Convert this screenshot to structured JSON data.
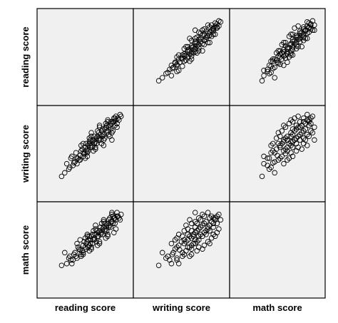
{
  "chart_data": {
    "type": "scatter",
    "variables": [
      "reading score",
      "writing score",
      "math score"
    ],
    "row_labels": [
      "reading score",
      "writing score",
      "math score"
    ],
    "column_labels": [
      "reading score",
      "writing score",
      "math score"
    ],
    "diagonal": "empty",
    "marker": "open-circle",
    "grid": false,
    "panel_background": "#f0f0f0",
    "marker_color": "#000000",
    "axis_ranges": {
      "reading score": [
        20,
        100
      ],
      "writing score": [
        10,
        100
      ],
      "math score": [
        10,
        100
      ]
    },
    "observations": {
      "columns": [
        "reading score",
        "writing score",
        "math score"
      ],
      "rows": [
        [
          37,
          30,
          38
        ],
        [
          45,
          40,
          48
        ],
        [
          48,
          42,
          44
        ],
        [
          52,
          50,
          46
        ],
        [
          55,
          53,
          55
        ],
        [
          58,
          56,
          52
        ],
        [
          60,
          62,
          58
        ],
        [
          62,
          60,
          64
        ],
        [
          64,
          66,
          60
        ],
        [
          66,
          64,
          70
        ],
        [
          68,
          70,
          66
        ],
        [
          70,
          68,
          72
        ],
        [
          72,
          74,
          70
        ],
        [
          74,
          72,
          76
        ],
        [
          76,
          80,
          74
        ],
        [
          78,
          76,
          80
        ],
        [
          80,
          84,
          78
        ],
        [
          82,
          80,
          84
        ],
        [
          84,
          86,
          82
        ],
        [
          86,
          88,
          86
        ],
        [
          88,
          90,
          90
        ],
        [
          90,
          92,
          88
        ],
        [
          92,
          94,
          92
        ],
        [
          95,
          96,
          94
        ],
        [
          44,
          38,
          46
        ],
        [
          50,
          46,
          52
        ],
        [
          54,
          48,
          56
        ],
        [
          56,
          58,
          50
        ],
        [
          58,
          52,
          60
        ],
        [
          61,
          58,
          62
        ],
        [
          63,
          64,
          58
        ],
        [
          65,
          62,
          66
        ],
        [
          67,
          68,
          62
        ],
        [
          69,
          66,
          68
        ],
        [
          71,
          72,
          64
        ],
        [
          73,
          70,
          74
        ],
        [
          75,
          76,
          72
        ],
        [
          77,
          74,
          78
        ],
        [
          79,
          82,
          76
        ],
        [
          81,
          78,
          82
        ],
        [
          83,
          84,
          80
        ],
        [
          85,
          82,
          86
        ],
        [
          87,
          90,
          84
        ],
        [
          89,
          86,
          90
        ],
        [
          91,
          88,
          92
        ],
        [
          93,
          92,
          90
        ],
        [
          42,
          44,
          40
        ],
        [
          46,
          50,
          44
        ],
        [
          49,
          45,
          50
        ],
        [
          51,
          56,
          48
        ],
        [
          53,
          50,
          58
        ],
        [
          57,
          60,
          54
        ],
        [
          59,
          55,
          64
        ],
        [
          61,
          66,
          56
        ],
        [
          63,
          58,
          66
        ],
        [
          65,
          70,
          62
        ],
        [
          67,
          62,
          72
        ],
        [
          69,
          74,
          66
        ],
        [
          71,
          66,
          76
        ],
        [
          73,
          78,
          70
        ],
        [
          75,
          70,
          80
        ],
        [
          77,
          82,
          72
        ],
        [
          79,
          72,
          84
        ],
        [
          81,
          86,
          76
        ],
        [
          83,
          76,
          88
        ],
        [
          85,
          90,
          80
        ],
        [
          87,
          80,
          92
        ],
        [
          89,
          94,
          84
        ],
        [
          91,
          84,
          96
        ],
        [
          94,
          98,
          88
        ],
        [
          40,
          34,
          52
        ],
        [
          47,
          52,
          40
        ],
        [
          52,
          44,
          62
        ],
        [
          56,
          64,
          48
        ],
        [
          60,
          50,
          68
        ],
        [
          64,
          72,
          54
        ],
        [
          68,
          58,
          76
        ],
        [
          72,
          80,
          60
        ],
        [
          76,
          66,
          84
        ],
        [
          80,
          88,
          68
        ],
        [
          84,
          74,
          90
        ],
        [
          88,
          94,
          74
        ],
        [
          62,
          56,
          70
        ],
        [
          66,
          74,
          58
        ],
        [
          70,
          62,
          78
        ],
        [
          74,
          84,
          64
        ],
        [
          78,
          70,
          86
        ],
        [
          82,
          90,
          72
        ],
        [
          86,
          78,
          94
        ],
        [
          55,
          48,
          66
        ],
        [
          58,
          66,
          50
        ],
        [
          62,
          52,
          72
        ],
        [
          66,
          78,
          56
        ],
        [
          70,
          60,
          82
        ],
        [
          74,
          86,
          62
        ],
        [
          78,
          64,
          88
        ],
        [
          82,
          92,
          70
        ],
        [
          86,
          70,
          96
        ],
        [
          90,
          96,
          78
        ],
        [
          64,
          68,
          70
        ]
      ]
    }
  }
}
